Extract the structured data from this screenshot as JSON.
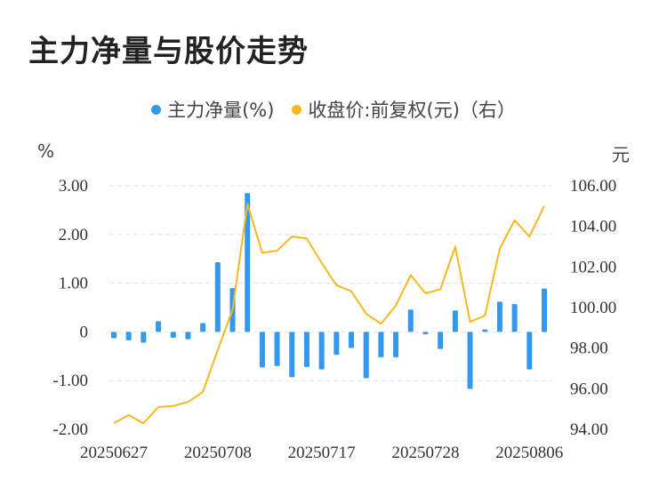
{
  "title": "主力净量与股价走势",
  "legend": {
    "series1": "主力净量(%)",
    "series2": "收盘价:前复权(元)（右）"
  },
  "axis_units": {
    "left": "%",
    "right": "元"
  },
  "colors": {
    "bars": "#3399EE",
    "line": "#F5B820",
    "grid": "#E2E2E2"
  },
  "chart_data": {
    "type": "bar+line",
    "x_tick_labels": [
      "20250627",
      "20250708",
      "20250717",
      "20250728",
      "20250806"
    ],
    "x_tick_indices": [
      0,
      7,
      14,
      21,
      28
    ],
    "left_axis": {
      "ticks": [
        "3.00",
        "2.00",
        "1.00",
        "0",
        "-1.00",
        "-2.00"
      ],
      "ylim": [
        -2,
        3
      ]
    },
    "right_axis": {
      "ticks": [
        "106.00",
        "104.00",
        "102.00",
        "100.00",
        "98.00",
        "96.00",
        "94.00"
      ],
      "ylim": [
        94,
        106
      ]
    },
    "series": [
      {
        "name": "主力净量(%)",
        "kind": "bar",
        "axis": "left",
        "values": [
          -0.13,
          -0.17,
          -0.22,
          0.22,
          -0.12,
          -0.15,
          0.18,
          1.43,
          0.9,
          2.85,
          -0.73,
          -0.7,
          -0.93,
          -0.72,
          -0.77,
          -0.47,
          -0.33,
          -0.95,
          -0.52,
          -0.52,
          0.46,
          -0.05,
          -0.35,
          0.44,
          -1.17,
          0.05,
          0.62,
          0.57,
          -0.77,
          0.89
        ]
      },
      {
        "name": "收盘价:前复权(元)（右）",
        "kind": "line",
        "axis": "right",
        "values": [
          94.3,
          94.7,
          94.3,
          95.1,
          95.15,
          95.35,
          95.85,
          97.9,
          99.9,
          105.1,
          102.7,
          102.8,
          103.5,
          103.4,
          102.2,
          101.1,
          100.8,
          99.7,
          99.2,
          100.1,
          101.6,
          100.7,
          100.9,
          103.0,
          99.3,
          99.6,
          102.9,
          104.3,
          103.5,
          105.0
        ]
      }
    ]
  }
}
